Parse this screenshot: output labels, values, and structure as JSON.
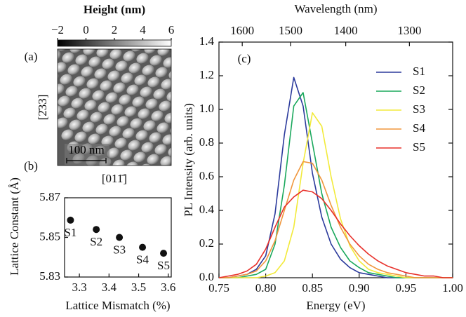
{
  "chart_data": [
    {
      "type": "image",
      "title": "Height (nm)",
      "panel_label": "(a)",
      "clim": [
        -2,
        6
      ],
      "cticks": [
        {
          "value": -2,
          "label": "−2"
        },
        0,
        2,
        4,
        6
      ],
      "y_label": "[2̄33]",
      "x_label": "[011̄]",
      "scale_bar": "100 nm"
    },
    {
      "type": "scatter",
      "panel_label": "(b)",
      "x_label": "Lattice Mismatch (%)",
      "y_label": "Lattice Constant (Å)",
      "x": [
        3.27,
        3.357,
        3.435,
        3.513,
        3.584
      ],
      "values": [
        5.8587,
        5.854,
        5.85,
        5.845,
        5.842
      ],
      "labels": [
        "S1",
        "S2",
        "S3",
        "S4",
        "S5"
      ],
      "color": "#111111",
      "xlim": [
        3.25,
        3.61
      ],
      "xticks": [
        3.3,
        3.4,
        3.5,
        3.6
      ],
      "ylim": [
        5.83,
        5.87
      ],
      "yticks": [
        5.83,
        5.85,
        5.87
      ]
    },
    {
      "type": "line",
      "panel_label": "(c)",
      "x_label": "Energy (eV)",
      "y_label": "PL Intensity (arb. units)",
      "x2_label": "Wavelength (nm)",
      "x": [
        0.75,
        0.76,
        0.77,
        0.78,
        0.79,
        0.8,
        0.81,
        0.82,
        0.83,
        0.84,
        0.85,
        0.86,
        0.87,
        0.88,
        0.89,
        0.9,
        0.91,
        0.92,
        0.93,
        0.94,
        0.95,
        0.96,
        0.97,
        0.98,
        0.99,
        1.0
      ],
      "series": [
        {
          "name": "S1",
          "color": "#2b3a9c",
          "values": [
            0,
            0,
            0.01,
            0.02,
            0.05,
            0.13,
            0.38,
            0.85,
            1.19,
            1.02,
            0.62,
            0.36,
            0.2,
            0.11,
            0.06,
            0.03,
            0.02,
            0.01,
            0,
            0,
            0,
            0,
            0,
            0,
            0,
            0
          ]
        },
        {
          "name": "S2",
          "color": "#1aa85c",
          "values": [
            0,
            0,
            0,
            0.01,
            0.02,
            0.05,
            0.2,
            0.55,
            1.02,
            1.1,
            0.8,
            0.5,
            0.3,
            0.18,
            0.1,
            0.06,
            0.03,
            0.02,
            0.01,
            0,
            0,
            0,
            0,
            0,
            0,
            0
          ]
        },
        {
          "name": "S3",
          "color": "#f2ea3a",
          "values": [
            0,
            0,
            0,
            0,
            0,
            0.01,
            0.03,
            0.1,
            0.3,
            0.68,
            0.98,
            0.9,
            0.6,
            0.35,
            0.19,
            0.1,
            0.05,
            0.03,
            0.02,
            0.01,
            0,
            0,
            0,
            0,
            0,
            0
          ]
        },
        {
          "name": "S4",
          "color": "#f0963c",
          "values": [
            0,
            0,
            0.01,
            0.02,
            0.04,
            0.1,
            0.22,
            0.4,
            0.58,
            0.69,
            0.68,
            0.58,
            0.43,
            0.3,
            0.2,
            0.13,
            0.08,
            0.05,
            0.03,
            0.02,
            0.01,
            0,
            0,
            0,
            0,
            0
          ]
        },
        {
          "name": "S5",
          "color": "#e8302a",
          "values": [
            0,
            0.01,
            0.02,
            0.04,
            0.08,
            0.17,
            0.3,
            0.42,
            0.48,
            0.52,
            0.51,
            0.47,
            0.4,
            0.32,
            0.25,
            0.19,
            0.14,
            0.1,
            0.07,
            0.05,
            0.03,
            0.02,
            0.01,
            0.01,
            0,
            0
          ]
        }
      ],
      "xlim": [
        0.75,
        1.0
      ],
      "xticks": [
        0.75,
        {
          "value": 0.8,
          "label": "0.80"
        },
        0.85,
        {
          "value": 0.9,
          "label": "0.90"
        },
        0.95,
        {
          "value": 1.0,
          "label": "1.00"
        }
      ],
      "ylim": [
        0,
        1.4
      ],
      "yticks": [
        {
          "value": 0,
          "label": "0.0"
        },
        0.2,
        0.4,
        0.6,
        0.8,
        {
          "value": 1.0,
          "label": "1.0"
        },
        1.2,
        1.4
      ],
      "x2ticks": [
        1600,
        1500,
        1400,
        1300
      ]
    }
  ]
}
